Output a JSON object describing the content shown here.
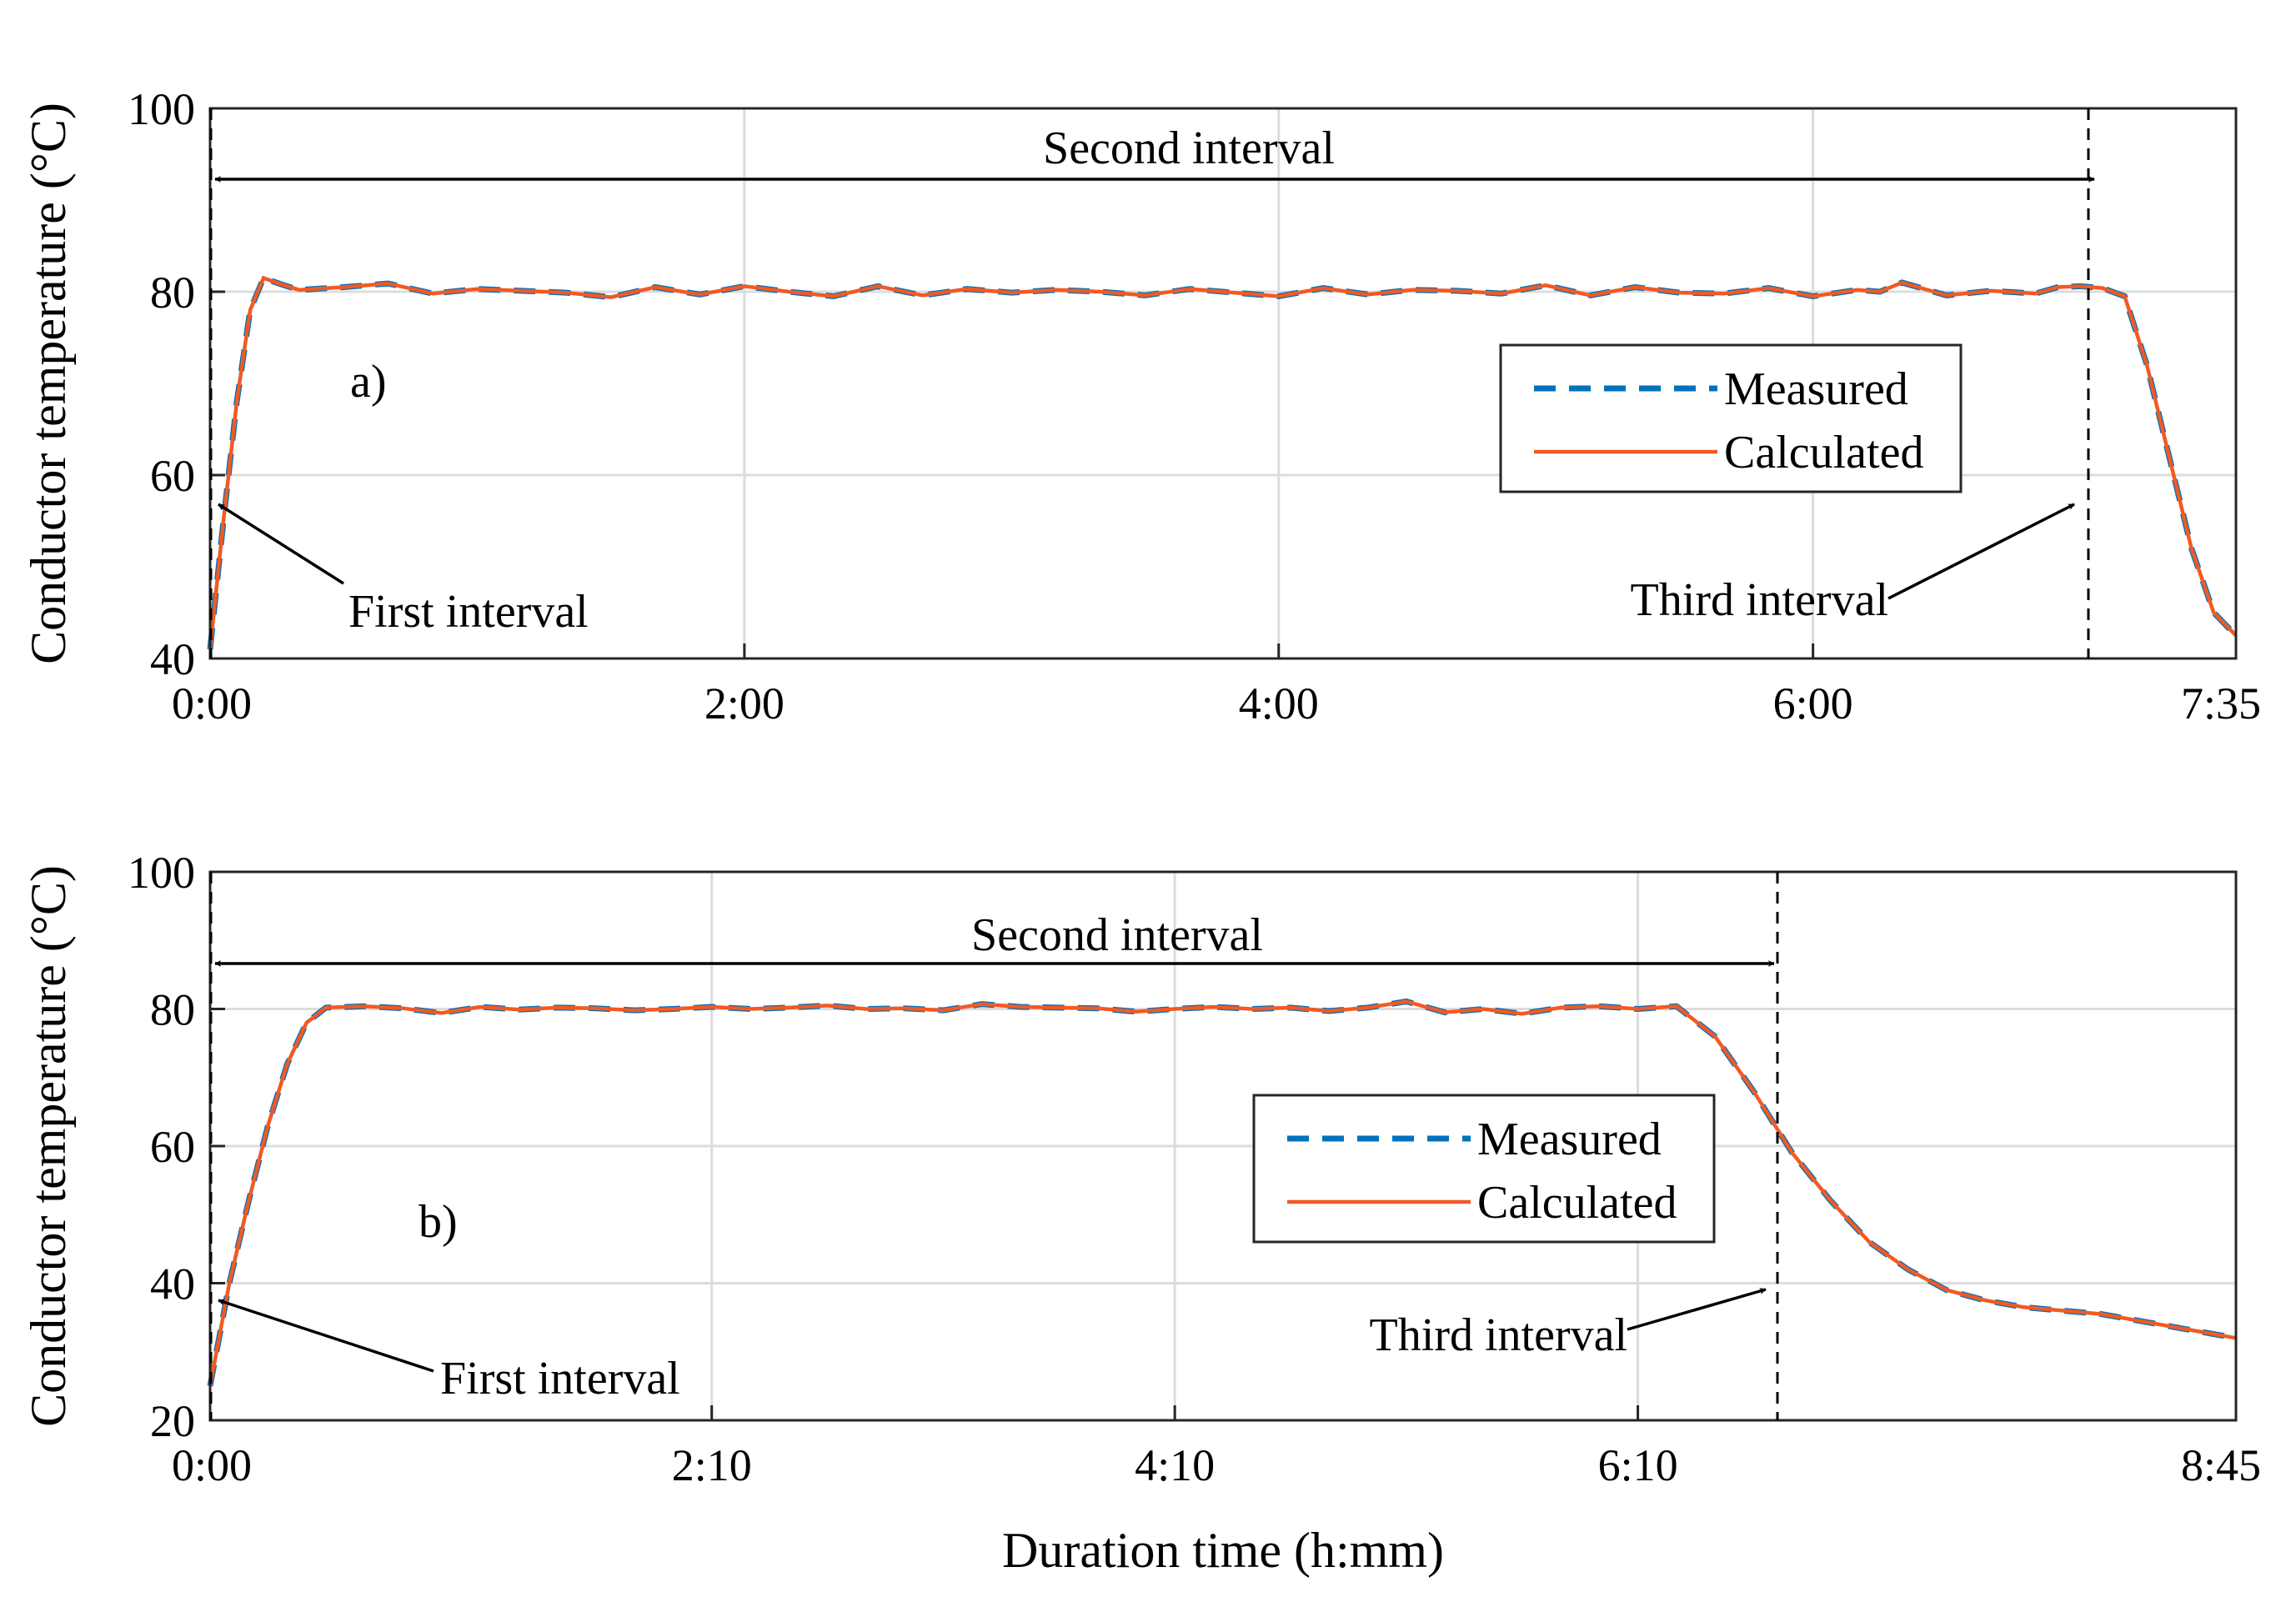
{
  "chart_data": [
    {
      "type": "line",
      "panel_label": "a)",
      "ylabel": "Conductor temperature (°C)",
      "xlabel": "",
      "x_unit": "minutes",
      "xlim": [
        0,
        455
      ],
      "ylim": [
        40,
        100
      ],
      "x_ticks": [
        0,
        120,
        240,
        360,
        455
      ],
      "x_tick_labels": [
        "0:00",
        "2:00",
        "4:00",
        "6:00",
        "7:35"
      ],
      "y_ticks": [
        40,
        60,
        80,
        100
      ],
      "y_tick_labels": [
        "40",
        "60",
        "80",
        "100"
      ],
      "grid": true,
      "legend_position": "center-right",
      "series": [
        {
          "name": "Measured",
          "color": "#0072BD",
          "style": "dashed",
          "x": [
            0,
            3,
            6,
            9,
            12,
            16,
            20,
            30,
            40,
            50,
            60,
            70,
            80,
            90,
            100,
            110,
            120,
            130,
            140,
            150,
            160,
            170,
            180,
            190,
            200,
            210,
            220,
            230,
            240,
            250,
            260,
            270,
            280,
            290,
            300,
            310,
            320,
            330,
            340,
            350,
            360,
            370,
            375,
            380,
            390,
            400,
            410,
            415,
            420,
            425,
            430,
            435,
            440,
            445,
            450,
            455
          ],
          "y": [
            41,
            55,
            68,
            78,
            81.5,
            80.8,
            80.2,
            80.5,
            80.9,
            79.8,
            80.3,
            80.1,
            79.9,
            79.4,
            80.5,
            79.7,
            80.6,
            80.0,
            79.5,
            80.6,
            79.6,
            80.3,
            79.9,
            80.2,
            80.0,
            79.6,
            80.3,
            79.9,
            79.5,
            80.4,
            79.7,
            80.2,
            80.1,
            79.8,
            80.7,
            79.6,
            80.5,
            79.9,
            79.8,
            80.4,
            79.5,
            80.2,
            80.0,
            81.0,
            79.6,
            80.1,
            79.8,
            80.5,
            80.6,
            80.4,
            79.5,
            72,
            62,
            52,
            45,
            42.5
          ]
        },
        {
          "name": "Calculated",
          "color": "#F05A24",
          "style": "solid",
          "x": [
            0,
            3,
            6,
            9,
            12,
            16,
            20,
            30,
            40,
            50,
            60,
            70,
            80,
            90,
            100,
            110,
            120,
            130,
            140,
            150,
            160,
            170,
            180,
            190,
            200,
            210,
            220,
            230,
            240,
            250,
            260,
            270,
            280,
            290,
            300,
            310,
            320,
            330,
            340,
            350,
            360,
            370,
            375,
            380,
            390,
            400,
            410,
            415,
            420,
            425,
            430,
            435,
            440,
            445,
            450,
            455
          ],
          "y": [
            41,
            55,
            68,
            78,
            81.5,
            80.8,
            80.2,
            80.5,
            80.9,
            79.8,
            80.3,
            80.1,
            79.9,
            79.4,
            80.5,
            79.7,
            80.6,
            80.0,
            79.5,
            80.6,
            79.6,
            80.3,
            79.9,
            80.2,
            80.0,
            79.6,
            80.3,
            79.9,
            79.5,
            80.4,
            79.7,
            80.2,
            80.1,
            79.8,
            80.7,
            79.6,
            80.5,
            79.9,
            79.8,
            80.4,
            79.5,
            80.2,
            80.0,
            81.0,
            79.6,
            80.1,
            79.8,
            80.5,
            80.6,
            80.4,
            79.5,
            72,
            62,
            52,
            45,
            42.5
          ]
        }
      ],
      "annotations": {
        "second_interval": "Second interval",
        "first_interval": "First interval",
        "third_interval": "Third interval"
      },
      "markers_x": [
        0,
        422
      ]
    },
    {
      "type": "line",
      "panel_label": "b)",
      "ylabel": "Conductor temperature (°C)",
      "xlabel": "Duration time (h:mm)",
      "x_unit": "minutes",
      "xlim": [
        0,
        525
      ],
      "ylim": [
        20,
        100
      ],
      "x_ticks": [
        0,
        130,
        250,
        370,
        525
      ],
      "x_tick_labels": [
        "0:00",
        "2:10",
        "4:10",
        "6:10",
        "8:45"
      ],
      "y_ticks": [
        20,
        40,
        60,
        80,
        100
      ],
      "y_tick_labels": [
        "20",
        "40",
        "60",
        "80",
        "100"
      ],
      "grid": true,
      "legend_position": "center",
      "series": [
        {
          "name": "Measured",
          "color": "#0072BD",
          "style": "dashed",
          "x": [
            0,
            5,
            10,
            15,
            20,
            25,
            30,
            40,
            50,
            60,
            70,
            80,
            90,
            100,
            110,
            120,
            130,
            140,
            150,
            160,
            170,
            180,
            190,
            200,
            210,
            220,
            230,
            240,
            250,
            260,
            270,
            280,
            290,
            300,
            310,
            320,
            330,
            340,
            350,
            360,
            370,
            380,
            390,
            400,
            410,
            420,
            430,
            440,
            450,
            460,
            470,
            480,
            490,
            500,
            510,
            525
          ],
          "y": [
            25,
            40,
            52,
            63,
            72,
            78,
            80.2,
            80.4,
            80.1,
            79.4,
            80.3,
            79.9,
            80.2,
            80.1,
            79.8,
            80.0,
            80.3,
            80.0,
            80.2,
            80.5,
            80.0,
            80.1,
            79.8,
            80.7,
            80.3,
            80.2,
            80.1,
            79.6,
            80.0,
            80.3,
            80.0,
            80.2,
            79.7,
            80.2,
            81.1,
            79.5,
            80.0,
            79.3,
            80.2,
            80.4,
            80.0,
            80.4,
            76,
            68,
            59,
            52,
            46,
            42,
            39,
            37.5,
            36.5,
            36,
            35.5,
            34.5,
            33.5,
            32
          ]
        },
        {
          "name": "Calculated",
          "color": "#F05A24",
          "style": "solid",
          "x": [
            0,
            5,
            10,
            15,
            20,
            25,
            30,
            40,
            50,
            60,
            70,
            80,
            90,
            100,
            110,
            120,
            130,
            140,
            150,
            160,
            170,
            180,
            190,
            200,
            210,
            220,
            230,
            240,
            250,
            260,
            270,
            280,
            290,
            300,
            310,
            320,
            330,
            340,
            350,
            360,
            370,
            380,
            390,
            400,
            410,
            420,
            430,
            440,
            450,
            460,
            470,
            480,
            490,
            500,
            510,
            525
          ],
          "y": [
            25,
            40,
            52,
            63,
            72,
            78,
            80.2,
            80.4,
            80.1,
            79.4,
            80.3,
            79.9,
            80.2,
            80.1,
            79.8,
            80.0,
            80.3,
            80.0,
            80.2,
            80.5,
            80.0,
            80.1,
            79.8,
            80.7,
            80.3,
            80.2,
            80.1,
            79.6,
            80.0,
            80.3,
            80.0,
            80.2,
            79.7,
            80.2,
            81.1,
            79.5,
            80.0,
            79.3,
            80.2,
            80.4,
            80.0,
            80.4,
            76,
            68,
            59,
            52,
            46,
            42,
            39,
            37.5,
            36.5,
            36,
            35.5,
            34.5,
            33.5,
            32
          ]
        }
      ],
      "annotations": {
        "second_interval": "Second interval",
        "first_interval": "First interval",
        "third_interval": "Third interval"
      },
      "markers_x": [
        0,
        406
      ]
    }
  ]
}
